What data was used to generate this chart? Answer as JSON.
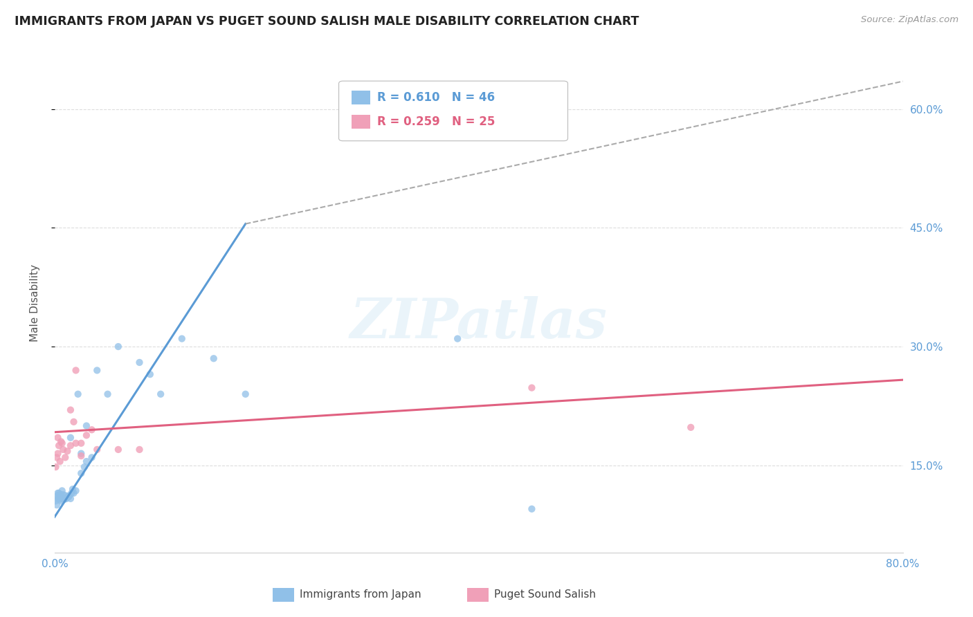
{
  "title": "IMMIGRANTS FROM JAPAN VS PUGET SOUND SALISH MALE DISABILITY CORRELATION CHART",
  "source": "Source: ZipAtlas.com",
  "ylabel": "Male Disability",
  "xlim": [
    0.0,
    0.8
  ],
  "ylim": [
    0.04,
    0.67
  ],
  "x_ticks": [
    0.0,
    0.1,
    0.2,
    0.3,
    0.4,
    0.5,
    0.6,
    0.7,
    0.8
  ],
  "x_tick_labels": [
    "0.0%",
    "",
    "",
    "",
    "",
    "",
    "",
    "",
    "80.0%"
  ],
  "y_ticks": [
    0.15,
    0.3,
    0.45,
    0.6
  ],
  "y_tick_labels": [
    "15.0%",
    "30.0%",
    "45.0%",
    "60.0%"
  ],
  "legend_R1": "R = 0.610",
  "legend_N1": "N = 46",
  "legend_R2": "R = 0.259",
  "legend_N2": "N = 25",
  "blue_color": "#5b9bd5",
  "pink_color": "#e06080",
  "blue_scatter_color": "#90c0e8",
  "pink_scatter_color": "#f0a0b8",
  "trendline_blue_solid": [
    0.0,
    0.085,
    0.18,
    0.455
  ],
  "trendline_blue_dashed": [
    0.18,
    0.455,
    0.8,
    0.635
  ],
  "trendline_pink": [
    0.0,
    0.192,
    0.8,
    0.258
  ],
  "blue_scatter_x": [
    0.001,
    0.002,
    0.002,
    0.003,
    0.003,
    0.004,
    0.004,
    0.005,
    0.005,
    0.006,
    0.006,
    0.007,
    0.007,
    0.008,
    0.008,
    0.009,
    0.01,
    0.01,
    0.011,
    0.012,
    0.013,
    0.014,
    0.015,
    0.016,
    0.017,
    0.018,
    0.02,
    0.022,
    0.025,
    0.028,
    0.03,
    0.035,
    0.04,
    0.05,
    0.06,
    0.08,
    0.09,
    0.1,
    0.12,
    0.15,
    0.18,
    0.38,
    0.45,
    0.03,
    0.025,
    0.015
  ],
  "blue_scatter_y": [
    0.105,
    0.108,
    0.1,
    0.115,
    0.112,
    0.108,
    0.115,
    0.107,
    0.112,
    0.105,
    0.113,
    0.108,
    0.118,
    0.113,
    0.108,
    0.107,
    0.108,
    0.112,
    0.108,
    0.11,
    0.11,
    0.112,
    0.108,
    0.115,
    0.12,
    0.115,
    0.118,
    0.24,
    0.14,
    0.148,
    0.155,
    0.16,
    0.27,
    0.24,
    0.3,
    0.28,
    0.265,
    0.24,
    0.31,
    0.285,
    0.24,
    0.31,
    0.095,
    0.2,
    0.165,
    0.185
  ],
  "pink_scatter_x": [
    0.001,
    0.002,
    0.003,
    0.003,
    0.004,
    0.005,
    0.006,
    0.007,
    0.008,
    0.01,
    0.012,
    0.015,
    0.018,
    0.02,
    0.025,
    0.03,
    0.035,
    0.04,
    0.06,
    0.08,
    0.45,
    0.6,
    0.02,
    0.015,
    0.025
  ],
  "pink_scatter_y": [
    0.148,
    0.16,
    0.165,
    0.185,
    0.175,
    0.155,
    0.18,
    0.178,
    0.17,
    0.16,
    0.168,
    0.175,
    0.205,
    0.178,
    0.162,
    0.188,
    0.195,
    0.17,
    0.17,
    0.17,
    0.248,
    0.198,
    0.27,
    0.22,
    0.178
  ],
  "watermark": "ZIPatlas",
  "background_color": "#ffffff",
  "grid_color": "#dddddd",
  "title_color": "#222222",
  "tick_label_color": "#5b9bd5",
  "dashed_color": "#aaaaaa"
}
